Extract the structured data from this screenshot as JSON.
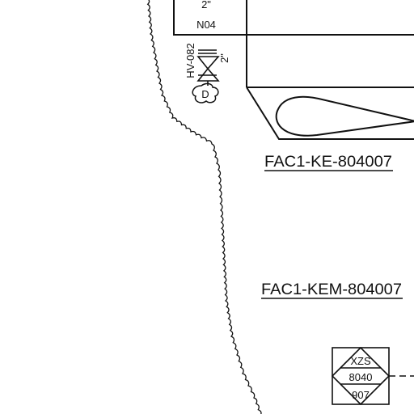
{
  "colors": {
    "line": "#111111",
    "background": "#ffffff"
  },
  "nozzle": {
    "size": "2\"",
    "tag": "N04"
  },
  "valve": {
    "tag": "HV-082",
    "size": "2\"",
    "actuator_letter": "D"
  },
  "equipment": {
    "tag_ke": "FAC1-KE-804007",
    "tag_kem": "FAC1-KEM-804007"
  },
  "instrument": {
    "function": "XZS",
    "loop_number": "8040",
    "sub_number": "907"
  },
  "icons": {
    "valve_symbol": "gate-valve-icon",
    "cloud_boundary": "cloud-boundary-icon"
  }
}
